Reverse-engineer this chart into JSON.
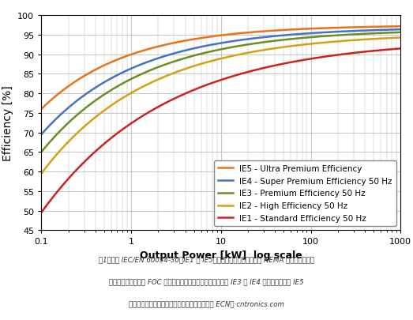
{
  "title_y": "Efficiency [%]",
  "xlabel": "Output Power [kW]  log scale",
  "ylabel_fontsize": 10,
  "xlabel_fontsize": 9,
  "xlim": [
    0.1,
    1000
  ],
  "ylim": [
    45,
    100
  ],
  "yticks": [
    45,
    50,
    55,
    60,
    65,
    70,
    75,
    80,
    85,
    90,
    95,
    100
  ],
  "background_color": "#ffffff",
  "grid_color": "#bbbbbb",
  "curves": [
    {
      "label": "IE5 - Ultra Premium Efficiency",
      "color": "#E8731A",
      "y0": 76.0,
      "y_max": 97.5,
      "rate": 1.05
    },
    {
      "label": "IE4 - Super Premium Efficiency 50 Hz",
      "color": "#4472C4",
      "y0": 69.5,
      "y_max": 97.0,
      "rate": 0.95
    },
    {
      "label": "IE3 - Premium Efficiency 50 Hz",
      "color": "#6B8E23",
      "y0": 65.0,
      "y_max": 96.5,
      "rate": 0.9
    },
    {
      "label": "IE2 - High Efficiency 50 Hz",
      "color": "#D4A017",
      "y0": 59.5,
      "y_max": 95.5,
      "rate": 0.85
    },
    {
      "label": "IE1 - Standard Efficiency 50 Hz",
      "color": "#CC2222",
      "y0": 49.5,
      "y_max": 94.0,
      "rate": 0.72
    }
  ],
  "legend_fontsize": 7.5,
  "caption_line1": "图1：根据 IEC/EN 60034-30（IE1 至 IE5）的电机效率等级和相应的 NEMA 等级（标准效率",
  "caption_line2": "至超高效率）。采用 FOC 和电子驱动的交流感应电机可以满足 IE3 和 IE4 级要求。要满足 IE5",
  "caption_line3": "级效率水平则需要使用永磁电机。（图片来源： ECN）·cntronics.com"
}
